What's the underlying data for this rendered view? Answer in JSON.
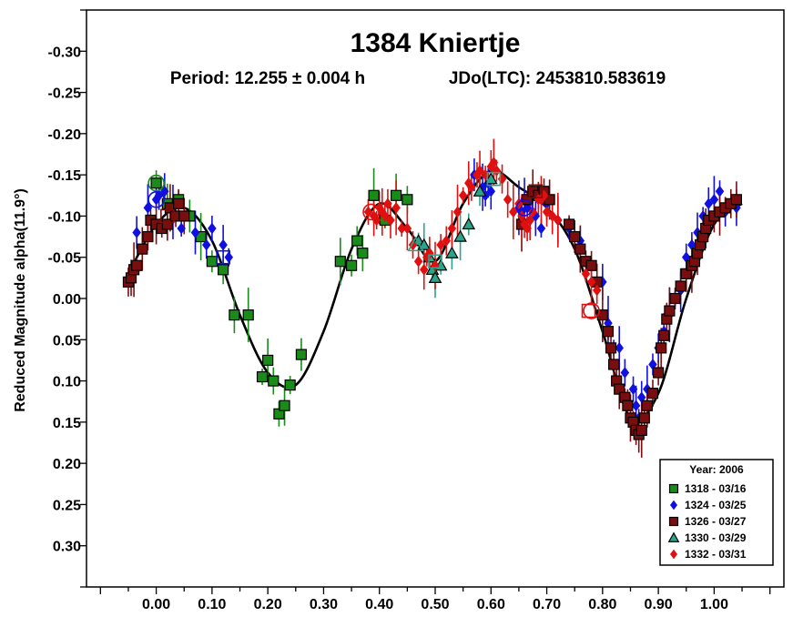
{
  "chart_data": {
    "type": "scatter",
    "title": "1384 Kniertje",
    "subtitle_period": "Period: 12.255 ± 0.004 h",
    "subtitle_epoch": "JDo(LTC): 2453810.583619",
    "ylabel": "Reduced Magnitude alpha(11.9°)",
    "xlabel": "",
    "xlim": [
      -0.125,
      1.125
    ],
    "ylim": [
      -0.35,
      0.35
    ],
    "y_inverted": true,
    "x_ticks": [
      0.0,
      0.1,
      0.2,
      0.3,
      0.4,
      0.5,
      0.6,
      0.7,
      0.8,
      0.9,
      1.0
    ],
    "x_tick_labels": [
      "0.00",
      "0.10",
      "0.20",
      "0.30",
      "0.40",
      "0.50",
      "0.60",
      "0.70",
      "0.80",
      "0.90",
      "1.00"
    ],
    "y_ticks": [
      -0.3,
      -0.25,
      -0.2,
      -0.15,
      -0.1,
      -0.05,
      0.0,
      0.05,
      0.1,
      0.15,
      0.2,
      0.25,
      0.3
    ],
    "y_tick_labels": [
      "-0.30",
      "-0.25",
      "-0.20",
      "-0.15",
      "-0.10",
      "-0.05",
      "0.00",
      "0.05",
      "0.10",
      "0.15",
      "0.20",
      "0.25",
      "0.30"
    ],
    "grid": false,
    "legend": {
      "title": "Year: 2006",
      "placement": "bottom-right",
      "entries": [
        "1318 - 03/16",
        "1324 - 03/25",
        "1326 - 03/27",
        "1330 - 03/29",
        "1332 - 03/31"
      ]
    },
    "fit_curve": {
      "x": [
        -0.05,
        0.0,
        0.05,
        0.1,
        0.15,
        0.2,
        0.25,
        0.3,
        0.35,
        0.4,
        0.45,
        0.5,
        0.55,
        0.6,
        0.65,
        0.7,
        0.75,
        0.8,
        0.85,
        0.9,
        0.95,
        1.0,
        1.05
      ],
      "y": [
        -0.03,
        -0.09,
        -0.11,
        -0.07,
        0.02,
        0.09,
        0.105,
        0.04,
        -0.06,
        -0.115,
        -0.085,
        -0.045,
        -0.115,
        -0.155,
        -0.135,
        -0.11,
        -0.06,
        0.04,
        0.145,
        0.115,
        0.0,
        -0.09,
        -0.115
      ]
    },
    "series": [
      {
        "name": "1318 - 03/16",
        "color": "#1a8a1a",
        "marker": "square",
        "x": [
          0.0,
          0.02,
          0.04,
          0.06,
          0.08,
          0.1,
          0.12,
          0.14,
          0.165,
          0.19,
          0.2,
          0.21,
          0.22,
          0.23,
          0.24,
          0.26,
          0.33,
          0.35,
          0.36,
          0.37,
          0.39,
          0.41,
          0.43,
          0.45
        ],
        "y": [
          -0.14,
          -0.115,
          -0.12,
          -0.1,
          -0.075,
          -0.045,
          -0.035,
          0.02,
          0.02,
          0.095,
          0.075,
          0.1,
          0.14,
          0.13,
          0.105,
          0.068,
          -0.045,
          -0.04,
          -0.07,
          -0.055,
          -0.125,
          -0.095,
          -0.125,
          -0.12
        ]
      },
      {
        "name": "1324 - 03/25",
        "color": "#1010e0",
        "marker": "diamond",
        "x": [
          -0.035,
          -0.015,
          0.0,
          0.005,
          0.015,
          0.03,
          0.045,
          0.07,
          0.09,
          0.1,
          0.12,
          0.13,
          0.57,
          0.585,
          0.59,
          0.595,
          0.6,
          0.65,
          0.655,
          0.66,
          0.665,
          0.67,
          0.68,
          0.69,
          0.7,
          0.72,
          0.74,
          0.76,
          0.8,
          0.81,
          0.82,
          0.83,
          0.84,
          0.855,
          0.86,
          0.865,
          0.87,
          0.88,
          0.89,
          0.9,
          0.91,
          0.92,
          0.93,
          0.94,
          0.95,
          0.96,
          0.97,
          0.98,
          0.99,
          1.0,
          1.01,
          1.02,
          1.04
        ],
        "y": [
          -0.08,
          -0.11,
          -0.12,
          -0.125,
          -0.13,
          -0.105,
          -0.085,
          -0.08,
          -0.065,
          -0.085,
          -0.065,
          -0.05,
          -0.15,
          -0.135,
          -0.125,
          -0.14,
          -0.13,
          -0.11,
          -0.105,
          -0.12,
          -0.11,
          -0.095,
          -0.1,
          -0.085,
          -0.115,
          -0.095,
          -0.085,
          -0.07,
          -0.02,
          0.03,
          0.06,
          0.06,
          0.09,
          0.11,
          0.13,
          0.145,
          0.12,
          0.11,
          0.08,
          0.06,
          0.04,
          0.02,
          0.0,
          -0.01,
          -0.05,
          -0.065,
          -0.08,
          -0.1,
          -0.115,
          -0.12,
          -0.13,
          -0.105,
          -0.11
        ]
      },
      {
        "name": "1326 - 03/27",
        "color": "#7a0e0e",
        "marker": "square",
        "x": [
          -0.05,
          -0.045,
          -0.04,
          -0.035,
          -0.025,
          -0.015,
          -0.01,
          0.0,
          0.01,
          0.02,
          0.025,
          0.035,
          0.04,
          0.05,
          0.655,
          0.665,
          0.675,
          0.685,
          0.695,
          0.705,
          0.74,
          0.75,
          0.76,
          0.77,
          0.78,
          0.79,
          0.8,
          0.81,
          0.815,
          0.82,
          0.825,
          0.83,
          0.84,
          0.845,
          0.85,
          0.855,
          0.86,
          0.865,
          0.87,
          0.875,
          0.88,
          0.89,
          0.9,
          0.905,
          0.91,
          0.915,
          0.92,
          0.93,
          0.94,
          0.95,
          0.96,
          0.965,
          0.97,
          0.975,
          0.98,
          0.985,
          0.99,
          1.0,
          1.01,
          1.02,
          1.03,
          1.04
        ],
        "y": [
          -0.02,
          -0.025,
          -0.035,
          -0.04,
          -0.06,
          -0.075,
          -0.095,
          -0.09,
          -0.085,
          -0.09,
          -0.11,
          -0.1,
          -0.115,
          -0.1,
          -0.09,
          -0.12,
          -0.13,
          -0.125,
          -0.13,
          -0.12,
          -0.09,
          -0.075,
          -0.06,
          -0.045,
          -0.04,
          -0.02,
          0.02,
          0.04,
          0.06,
          0.08,
          0.1,
          0.11,
          0.12,
          0.13,
          0.145,
          0.15,
          0.16,
          0.165,
          0.16,
          0.145,
          0.13,
          0.115,
          0.09,
          0.06,
          0.045,
          0.025,
          0.015,
          0.0,
          -0.015,
          -0.03,
          -0.04,
          -0.045,
          -0.055,
          -0.065,
          -0.075,
          -0.085,
          -0.095,
          -0.1,
          -0.105,
          -0.11,
          -0.115,
          -0.12
        ]
      },
      {
        "name": "1330 - 03/29",
        "color": "#2aa58a",
        "marker": "triangle",
        "x": [
          0.47,
          0.48,
          0.49,
          0.495,
          0.5,
          0.51,
          0.53,
          0.545,
          0.56,
          0.58,
          0.6
        ],
        "y": [
          -0.07,
          -0.065,
          -0.05,
          -0.035,
          -0.025,
          -0.04,
          -0.055,
          -0.075,
          -0.09,
          -0.13,
          -0.145
        ],
        "open_fill": false
      },
      {
        "name": "1332 - 03/31",
        "color": "#e01010",
        "marker": "diamond",
        "x": [
          0.38,
          0.39,
          0.395,
          0.4,
          0.405,
          0.41,
          0.415,
          0.42,
          0.43,
          0.44,
          0.45,
          0.46,
          0.47,
          0.48,
          0.485,
          0.49,
          0.5,
          0.51,
          0.52,
          0.53,
          0.54,
          0.55,
          0.56,
          0.565,
          0.575,
          0.58,
          0.59,
          0.6,
          0.605,
          0.61,
          0.62,
          0.63,
          0.64,
          0.65,
          0.655,
          0.66,
          0.665,
          0.67,
          0.675,
          0.685,
          0.69,
          0.695,
          0.7,
          0.71,
          0.72,
          0.77,
          0.78,
          0.79
        ],
        "y": [
          -0.105,
          -0.1,
          -0.095,
          -0.11,
          -0.105,
          -0.1,
          -0.115,
          -0.095,
          -0.11,
          -0.085,
          -0.085,
          -0.065,
          -0.045,
          -0.035,
          -0.05,
          -0.055,
          -0.04,
          -0.065,
          -0.07,
          -0.085,
          -0.105,
          -0.125,
          -0.14,
          -0.135,
          -0.15,
          -0.155,
          -0.15,
          -0.16,
          -0.165,
          -0.155,
          -0.145,
          -0.12,
          -0.105,
          -0.115,
          -0.1,
          -0.09,
          -0.085,
          -0.095,
          -0.105,
          -0.12,
          -0.12,
          -0.125,
          -0.105,
          -0.1,
          -0.095,
          -0.03,
          -0.02,
          -0.01
        ]
      }
    ],
    "open_markers": [
      {
        "series": "1318 - 03/16",
        "shape": "circle",
        "x": 0.0,
        "y": -0.14
      },
      {
        "series": "1324 - 03/25",
        "shape": "circle",
        "x": 0.0,
        "y": -0.12
      },
      {
        "series": "1326 - 03/27",
        "shape": "square",
        "x": 0.02,
        "y": -0.1
      },
      {
        "series": "1324 - 03/25",
        "shape": "square",
        "x": 0.12,
        "y": -0.05
      },
      {
        "series": "1332 - 03/31",
        "shape": "circle",
        "x": 0.385,
        "y": -0.105
      },
      {
        "series": "1330 - 03/29",
        "shape": "triangle",
        "x": 0.465,
        "y": -0.065
      },
      {
        "series": "1330 - 03/29",
        "shape": "square",
        "x": 0.5,
        "y": -0.045
      },
      {
        "series": "1330 - 03/29",
        "shape": "square",
        "x": 0.605,
        "y": -0.145
      },
      {
        "series": "1324 - 03/25",
        "shape": "circle",
        "x": 0.66,
        "y": -0.11
      },
      {
        "series": "1326 - 03/27",
        "shape": "square",
        "x": 0.68,
        "y": -0.13
      },
      {
        "series": "1332 - 03/31",
        "shape": "square",
        "x": 0.775,
        "y": 0.015
      },
      {
        "series": "1332 - 03/31",
        "shape": "circle",
        "x": 0.78,
        "y": 0.015
      }
    ]
  }
}
